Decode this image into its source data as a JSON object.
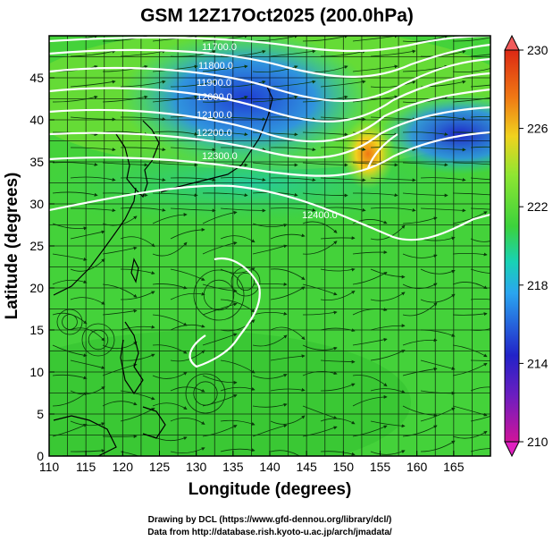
{
  "chart_data": {
    "type": "heatmap",
    "title": "GSM 12Z17Oct2025 (200.0hPa)",
    "xlabel": "Longitude (degrees)",
    "ylabel": "Latitude  (degrees)",
    "xlim": [
      110,
      170
    ],
    "ylim": [
      0,
      50
    ],
    "xticks": [
      110,
      115,
      120,
      125,
      130,
      135,
      140,
      145,
      150,
      155,
      160,
      165
    ],
    "yticks": [
      0,
      5,
      10,
      15,
      20,
      25,
      30,
      35,
      40,
      45
    ],
    "grid": true,
    "colorbar": {
      "ticks": [
        210,
        214,
        218,
        222,
        226,
        230
      ],
      "range": [
        210,
        230
      ],
      "colors": [
        "#d0149a",
        "#2222c8",
        "#2aa6f0",
        "#18d2b4",
        "#3cd23c",
        "#8ee632",
        "#f0d21e",
        "#f07814",
        "#dc2814"
      ]
    },
    "contours": {
      "labels": [
        "11700.0",
        "11800.0",
        "11900.0",
        "12000.0",
        "12100.0",
        "12200.0",
        "12300.0",
        "12400.0"
      ],
      "color": "#ffffff"
    },
    "streamlines": true,
    "credits": [
      "Drawing by DCL (https://www.gfd-dennou.org/library/dcl/)",
      "Data from http://database.rish.kyoto-u.ac.jp/arch/jmadata/"
    ]
  }
}
